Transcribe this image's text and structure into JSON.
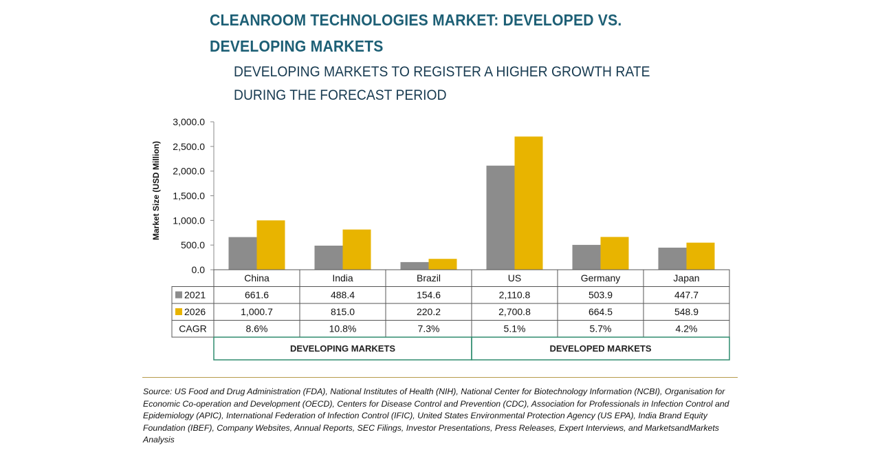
{
  "title": "CLEANROOM TECHNOLOGIES MARKET: DEVELOPED VS. DEVELOPING MARKETS",
  "subtitle": "DEVELOPING MARKETS TO REGISTER A HIGHER GROWTH RATE DURING THE FORECAST PERIOD",
  "chart_data": {
    "type": "bar",
    "categories": [
      "China",
      "India",
      "Brazil",
      "US",
      "Germany",
      "Japan"
    ],
    "series": [
      {
        "name": "2021",
        "values": [
          661.6,
          488.4,
          154.6,
          2110.8,
          503.9,
          447.7
        ],
        "labels": [
          "661.6",
          "488.4",
          "154.6",
          "2,110.8",
          "503.9",
          "447.7"
        ],
        "color": "#8c8c8c"
      },
      {
        "name": "2026",
        "values": [
          1000.7,
          815.0,
          220.2,
          2700.8,
          664.5,
          548.9
        ],
        "labels": [
          "1,000.7",
          "815.0",
          "220.2",
          "2,700.8",
          "664.5",
          "548.9"
        ],
        "color": "#e8b400"
      }
    ],
    "cagr_label": "CAGR",
    "cagr": [
      "8.6%",
      "10.8%",
      "7.3%",
      "5.1%",
      "5.7%",
      "4.2%"
    ],
    "ylabel": "Market Size (USD Million)",
    "ylim": [
      0,
      3000
    ],
    "yticks": [
      0,
      500,
      1000,
      1500,
      2000,
      2500,
      3000
    ],
    "ytick_labels": [
      "0.0",
      "500.0",
      "1,000.0",
      "1,500.0",
      "2,000.0",
      "2,500.0",
      "3,000.0"
    ],
    "groups": [
      {
        "label": "DEVELOPING MARKETS",
        "count": 3
      },
      {
        "label": "DEVELOPED MARKETS",
        "count": 3
      }
    ]
  },
  "source": "Source: US Food and Drug Administration (FDA), National Institutes of Health (NIH), National Center for Biotechnology Information (NCBI), Organisation for Economic Co-operation and Development (OECD), Centers for Disease Control and Prevention (CDC), Association for Professionals in Infection Control and Epidemiology (APIC), International Federation of Infection Control (IFIC), United States Environmental Protection Agency (US EPA), India Brand Equity Foundation (IBEF), Company Websites, Annual Reports, SEC Filings, Investor Presentations, Press Releases, Expert Interviews, and MarketsandMarkets Analysis",
  "colors": {
    "title": "#1d5f75",
    "subtitle": "#173a50",
    "group_border": "#2e8b6e"
  }
}
